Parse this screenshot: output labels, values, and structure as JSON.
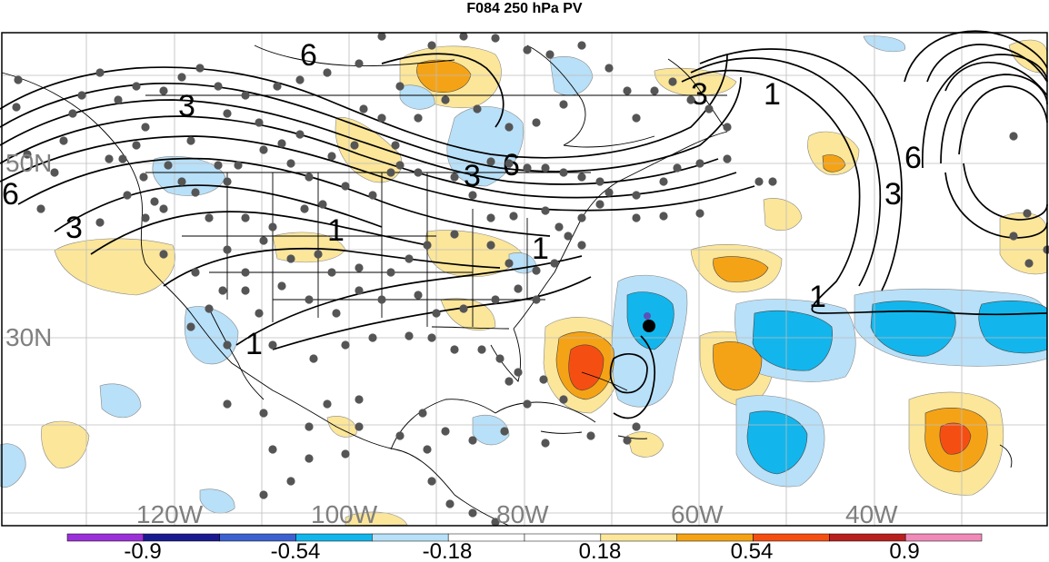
{
  "title": "F084 250 hPa PV",
  "lat_labels": [
    "50N",
    "30N"
  ],
  "lon_labels": [
    "120W",
    "100W",
    "80W",
    "60W",
    "40W"
  ],
  "contour_labels": [
    "6",
    "3",
    "1"
  ],
  "colorbar": {
    "colors": [
      "#9b30d8",
      "#1a1a90",
      "#3c60d0",
      "#12b6ec",
      "#b8e0f8",
      "#ffffff",
      "#ffffff",
      "#fbe69a",
      "#f5a316",
      "#f54e13",
      "#b8201f",
      "#f08ab8"
    ],
    "labels": [
      "-0.9",
      "-0.54",
      "-0.18",
      "0.18",
      "0.54",
      "0.9"
    ]
  },
  "anomaly_colors": {
    "light_blue": "#b8e0f8",
    "medium_blue": "#12b6ec",
    "light_yellow": "#fbe69a",
    "orange": "#f5a316",
    "red_orange": "#f54e13"
  },
  "stations_color": "#555555"
}
